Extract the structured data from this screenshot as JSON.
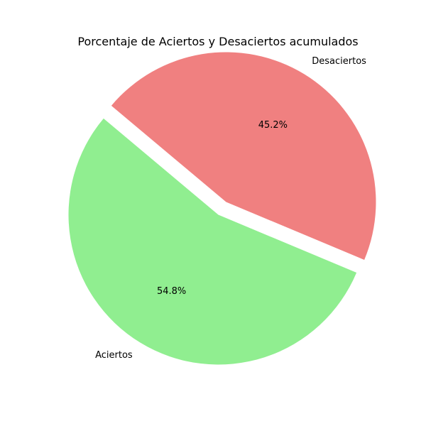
{
  "chart_data": {
    "type": "pie",
    "title": "Porcentaje de Aciertos y Desaciertos acumulados",
    "slices": [
      {
        "label": "Aciertos",
        "value": 54.8,
        "pct_label": "54.8%",
        "color": "#90ee90",
        "explode": 0.0
      },
      {
        "label": "Desaciertos",
        "value": 45.2,
        "pct_label": "45.2%",
        "color": "#f08080",
        "explode": 0.1
      }
    ],
    "start_angle_deg": 140
  }
}
